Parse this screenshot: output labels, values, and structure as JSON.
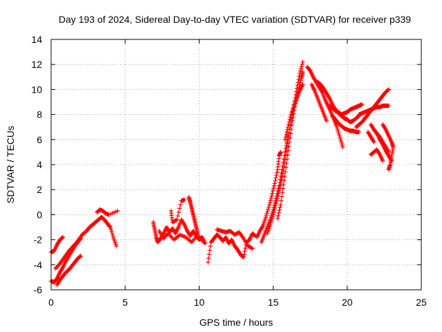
{
  "chart_data": {
    "type": "scatter",
    "title": "Day 193 of 2024, Sidereal Day-to-day VTEC variation (SDTVAR) for receiver p339",
    "xlabel": "GPS time / hours",
    "ylabel": "SDTVAR / TECUs",
    "xlim": [
      0,
      25
    ],
    "ylim": [
      -6,
      14
    ],
    "x_ticks": [
      0,
      5,
      10,
      15,
      20,
      25
    ],
    "y_ticks": [
      -6,
      -4,
      -2,
      0,
      2,
      4,
      6,
      8,
      10,
      12,
      14
    ],
    "grid": true,
    "marker": "plus",
    "colors": {
      "series": "#ff0000",
      "axes": "#000000",
      "grid": "#a0a0a0"
    },
    "series": [
      {
        "name": "SDTVAR",
        "segments": [
          [
            [
              0.0,
              -5.3
            ],
            [
              0.2,
              -5.4
            ],
            [
              0.4,
              -5.1
            ],
            [
              0.6,
              -4.6
            ],
            [
              0.8,
              -4.2
            ],
            [
              1.0,
              -3.7
            ],
            [
              1.2,
              -3.3
            ],
            [
              1.4,
              -2.9
            ],
            [
              1.6,
              -2.5
            ],
            [
              1.8,
              -2.2
            ],
            [
              2.0,
              -1.9
            ]
          ],
          [
            [
              0.4,
              -5.6
            ],
            [
              0.6,
              -5.2
            ],
            [
              0.8,
              -4.9
            ],
            [
              1.0,
              -4.6
            ],
            [
              1.2,
              -4.4
            ],
            [
              1.4,
              -4.1
            ],
            [
              1.6,
              -3.8
            ],
            [
              1.8,
              -3.5
            ],
            [
              2.0,
              -3.3
            ]
          ],
          [
            [
              0.0,
              -3.0
            ],
            [
              0.2,
              -2.9
            ],
            [
              0.4,
              -2.4
            ],
            [
              0.6,
              -2.0
            ],
            [
              0.8,
              -1.8
            ]
          ],
          [
            [
              0.3,
              -4.3
            ],
            [
              0.6,
              -3.9
            ],
            [
              0.9,
              -3.4
            ],
            [
              1.2,
              -2.9
            ],
            [
              1.5,
              -2.5
            ],
            [
              1.8,
              -2.1
            ],
            [
              2.1,
              -1.6
            ],
            [
              2.3,
              -1.4
            ]
          ],
          [
            [
              2.4,
              -1.3
            ],
            [
              2.6,
              -1.0
            ],
            [
              2.8,
              -0.8
            ],
            [
              3.0,
              -0.6
            ],
            [
              3.2,
              -0.4
            ],
            [
              3.4,
              -0.2
            ],
            [
              3.6,
              -0.4
            ],
            [
              3.8,
              -0.7
            ],
            [
              4.0,
              -1.0
            ],
            [
              4.2,
              -1.8
            ],
            [
              4.4,
              -2.5
            ]
          ],
          [
            [
              3.1,
              0.2
            ],
            [
              3.3,
              0.4
            ],
            [
              3.5,
              0.3
            ],
            [
              3.7,
              0.1
            ],
            [
              3.9,
              0.0
            ],
            [
              4.5,
              0.3
            ]
          ],
          [
            [
              6.9,
              -0.6
            ],
            [
              7.0,
              -1.2
            ],
            [
              7.1,
              -1.8
            ],
            [
              7.2,
              -2.2
            ],
            [
              7.4,
              -1.9
            ],
            [
              7.6,
              -1.5
            ],
            [
              7.8,
              -1.0
            ],
            [
              8.0,
              -1.4
            ],
            [
              8.2,
              -1.1
            ],
            [
              8.4,
              -1.5
            ],
            [
              8.6,
              -1.0
            ],
            [
              8.8,
              -0.4
            ],
            [
              9.0,
              -0.8
            ],
            [
              9.2,
              -1.3
            ],
            [
              9.4,
              -1.7
            ],
            [
              9.6,
              -1.3
            ],
            [
              9.8,
              -1.7
            ],
            [
              10.0,
              -2.0
            ],
            [
              10.2,
              -1.8
            ],
            [
              10.4,
              -2.3
            ]
          ],
          [
            [
              7.3,
              -1.3
            ],
            [
              7.6,
              -1.9
            ],
            [
              7.9,
              -1.5
            ],
            [
              8.3,
              -2.0
            ],
            [
              8.7,
              -1.6
            ],
            [
              9.1,
              -1.8
            ],
            [
              9.5,
              -2.2
            ],
            [
              9.9,
              -1.6
            ],
            [
              10.3,
              -2.2
            ]
          ],
          [
            [
              9.3,
              1.4
            ],
            [
              9.4,
              1.0
            ],
            [
              9.5,
              0.5
            ],
            [
              9.6,
              0.0
            ],
            [
              9.7,
              -0.5
            ],
            [
              9.8,
              -1.0
            ],
            [
              9.9,
              -1.5
            ]
          ],
          [
            [
              8.1,
              0.3
            ],
            [
              8.2,
              -0.6
            ],
            [
              8.5,
              -0.4
            ],
            [
              8.8,
              1.1
            ],
            [
              9.0,
              1.2
            ]
          ],
          [
            [
              10.6,
              -3.8
            ],
            [
              10.8,
              -2.2
            ],
            [
              11.0,
              -1.9
            ],
            [
              11.2,
              -1.6
            ],
            [
              11.4,
              -1.8
            ],
            [
              11.6,
              -2.1
            ],
            [
              11.8,
              -1.8
            ],
            [
              12.0,
              -2.3
            ],
            [
              12.2,
              -2.0
            ],
            [
              12.4,
              -2.5
            ],
            [
              12.6,
              -2.8
            ],
            [
              12.8,
              -3.2
            ],
            [
              13.0,
              -3.4
            ],
            [
              13.2,
              -2.2
            ],
            [
              13.4,
              -2.0
            ],
            [
              13.6,
              -1.5
            ],
            [
              13.8,
              -1.7
            ]
          ],
          [
            [
              11.2,
              -1.2
            ],
            [
              11.5,
              -1.3
            ],
            [
              11.8,
              -1.4
            ],
            [
              12.1,
              -1.3
            ],
            [
              12.4,
              -1.6
            ],
            [
              12.7,
              -1.4
            ],
            [
              13.0,
              -1.9
            ],
            [
              13.3,
              -2.5
            ],
            [
              13.6,
              -2.7
            ]
          ],
          [
            [
              14.2,
              -2.2
            ],
            [
              14.4,
              -1.6
            ],
            [
              14.6,
              -1.0
            ],
            [
              14.8,
              -0.4
            ],
            [
              15.0,
              0.4
            ],
            [
              15.2,
              1.3
            ],
            [
              15.4,
              2.3
            ],
            [
              15.6,
              3.6
            ],
            [
              15.8,
              5.0
            ],
            [
              16.0,
              6.3
            ]
          ],
          [
            [
              13.9,
              -1.8
            ],
            [
              14.1,
              -1.3
            ],
            [
              14.3,
              -0.9
            ],
            [
              14.5,
              -0.2
            ],
            [
              14.7,
              0.6
            ],
            [
              14.9,
              1.5
            ],
            [
              15.1,
              2.5
            ],
            [
              15.3,
              3.6
            ],
            [
              15.4,
              4.7
            ],
            [
              15.5,
              5.0
            ]
          ],
          [
            [
              14.6,
              -1.5
            ],
            [
              14.8,
              -0.8
            ],
            [
              15.0,
              0.0
            ],
            [
              15.2,
              0.9
            ],
            [
              15.4,
              1.9
            ],
            [
              15.6,
              3.0
            ],
            [
              15.8,
              4.4
            ],
            [
              16.0,
              6.0
            ],
            [
              16.2,
              7.4
            ],
            [
              16.4,
              8.8
            ],
            [
              16.6,
              10.1
            ],
            [
              16.8,
              11.3
            ],
            [
              17.0,
              12.2
            ]
          ],
          [
            [
              15.3,
              -0.3
            ],
            [
              15.5,
              0.8
            ],
            [
              15.7,
              2.4
            ],
            [
              15.9,
              4.1
            ],
            [
              16.1,
              5.8
            ],
            [
              16.3,
              7.5
            ],
            [
              16.5,
              8.9
            ],
            [
              16.7,
              10.0
            ],
            [
              16.9,
              10.9
            ],
            [
              17.0,
              11.4
            ]
          ],
          [
            [
              15.8,
              6.0
            ],
            [
              16.0,
              7.0
            ],
            [
              16.2,
              8.0
            ],
            [
              16.4,
              8.7
            ],
            [
              16.6,
              9.3
            ],
            [
              16.8,
              9.9
            ],
            [
              17.0,
              10.4
            ]
          ],
          [
            [
              17.3,
              11.8
            ],
            [
              17.5,
              11.5
            ],
            [
              17.7,
              11.0
            ],
            [
              17.9,
              10.6
            ],
            [
              18.1,
              10.2
            ],
            [
              18.3,
              9.8
            ],
            [
              18.5,
              9.2
            ],
            [
              18.7,
              8.7
            ],
            [
              18.9,
              8.2
            ],
            [
              19.1,
              7.6
            ],
            [
              19.3,
              7.0
            ],
            [
              19.5,
              6.2
            ],
            [
              19.7,
              5.4
            ]
          ],
          [
            [
              17.6,
              10.4
            ],
            [
              17.8,
              9.9
            ],
            [
              18.0,
              9.3
            ],
            [
              18.2,
              8.7
            ],
            [
              18.4,
              8.1
            ],
            [
              18.6,
              7.5
            ]
          ],
          [
            [
              18.0,
              10.6
            ],
            [
              18.2,
              10.4
            ],
            [
              18.4,
              10.1
            ],
            [
              18.6,
              9.7
            ],
            [
              18.8,
              9.3
            ],
            [
              19.0,
              8.8
            ],
            [
              19.2,
              8.4
            ],
            [
              19.4,
              8.1
            ],
            [
              19.6,
              7.9
            ],
            [
              19.8,
              7.7
            ],
            [
              20.0,
              7.6
            ],
            [
              20.2,
              7.4
            ],
            [
              20.4,
              7.5
            ],
            [
              20.6,
              7.7
            ],
            [
              20.8,
              7.9
            ]
          ],
          [
            [
              18.8,
              8.7
            ],
            [
              19.0,
              8.5
            ],
            [
              19.2,
              8.3
            ],
            [
              19.4,
              8.2
            ],
            [
              19.6,
              8.0
            ],
            [
              19.8,
              8.1
            ],
            [
              20.0,
              8.2
            ],
            [
              20.2,
              8.4
            ],
            [
              20.4,
              8.5
            ],
            [
              20.6,
              8.6
            ],
            [
              20.8,
              8.7
            ],
            [
              21.0,
              8.8
            ]
          ],
          [
            [
              19.0,
              7.9
            ],
            [
              19.2,
              7.6
            ],
            [
              19.4,
              7.3
            ],
            [
              19.6,
              7.1
            ],
            [
              19.8,
              6.9
            ],
            [
              20.0,
              6.8
            ],
            [
              20.2,
              6.7
            ],
            [
              20.4,
              6.7
            ],
            [
              20.6,
              6.6
            ],
            [
              20.8,
              6.6
            ]
          ],
          [
            [
              20.6,
              7.0
            ],
            [
              20.8,
              7.2
            ],
            [
              21.0,
              7.4
            ],
            [
              21.2,
              7.7
            ],
            [
              21.4,
              8.0
            ],
            [
              21.6,
              8.3
            ],
            [
              21.8,
              8.6
            ],
            [
              22.0,
              8.9
            ],
            [
              22.2,
              9.2
            ],
            [
              22.4,
              9.5
            ],
            [
              22.6,
              9.8
            ],
            [
              22.8,
              10.0
            ]
          ],
          [
            [
              20.8,
              8.0
            ],
            [
              21.0,
              8.1
            ],
            [
              21.2,
              8.2
            ],
            [
              21.4,
              8.3
            ],
            [
              21.6,
              8.4
            ],
            [
              21.8,
              8.5
            ],
            [
              22.0,
              8.6
            ],
            [
              22.2,
              8.6
            ],
            [
              22.4,
              8.7
            ],
            [
              22.6,
              8.7
            ],
            [
              22.8,
              8.7
            ]
          ],
          [
            [
              21.4,
              6.6
            ],
            [
              21.6,
              6.2
            ],
            [
              21.8,
              5.8
            ]
          ],
          [
            [
              22.0,
              6.5
            ],
            [
              22.2,
              6.2
            ],
            [
              22.4,
              5.8
            ],
            [
              22.6,
              5.4
            ],
            [
              22.8,
              5.0
            ]
          ],
          [
            [
              21.6,
              7.2
            ],
            [
              21.8,
              6.8
            ],
            [
              22.0,
              6.5
            ],
            [
              22.2,
              6.0
            ],
            [
              22.4,
              5.6
            ],
            [
              22.6,
              5.1
            ],
            [
              22.8,
              4.7
            ],
            [
              23.0,
              4.3
            ]
          ],
          [
            [
              21.6,
              4.8
            ],
            [
              21.8,
              5.0
            ],
            [
              22.0,
              5.2
            ],
            [
              22.2,
              4.8
            ],
            [
              22.4,
              4.3
            ]
          ],
          [
            [
              22.4,
              7.2
            ],
            [
              22.6,
              6.8
            ],
            [
              22.8,
              6.3
            ],
            [
              23.0,
              5.8
            ],
            [
              23.1,
              5.4
            ],
            [
              23.0,
              4.7
            ],
            [
              22.9,
              4.0
            ],
            [
              22.8,
              3.6
            ]
          ]
        ]
      }
    ]
  }
}
